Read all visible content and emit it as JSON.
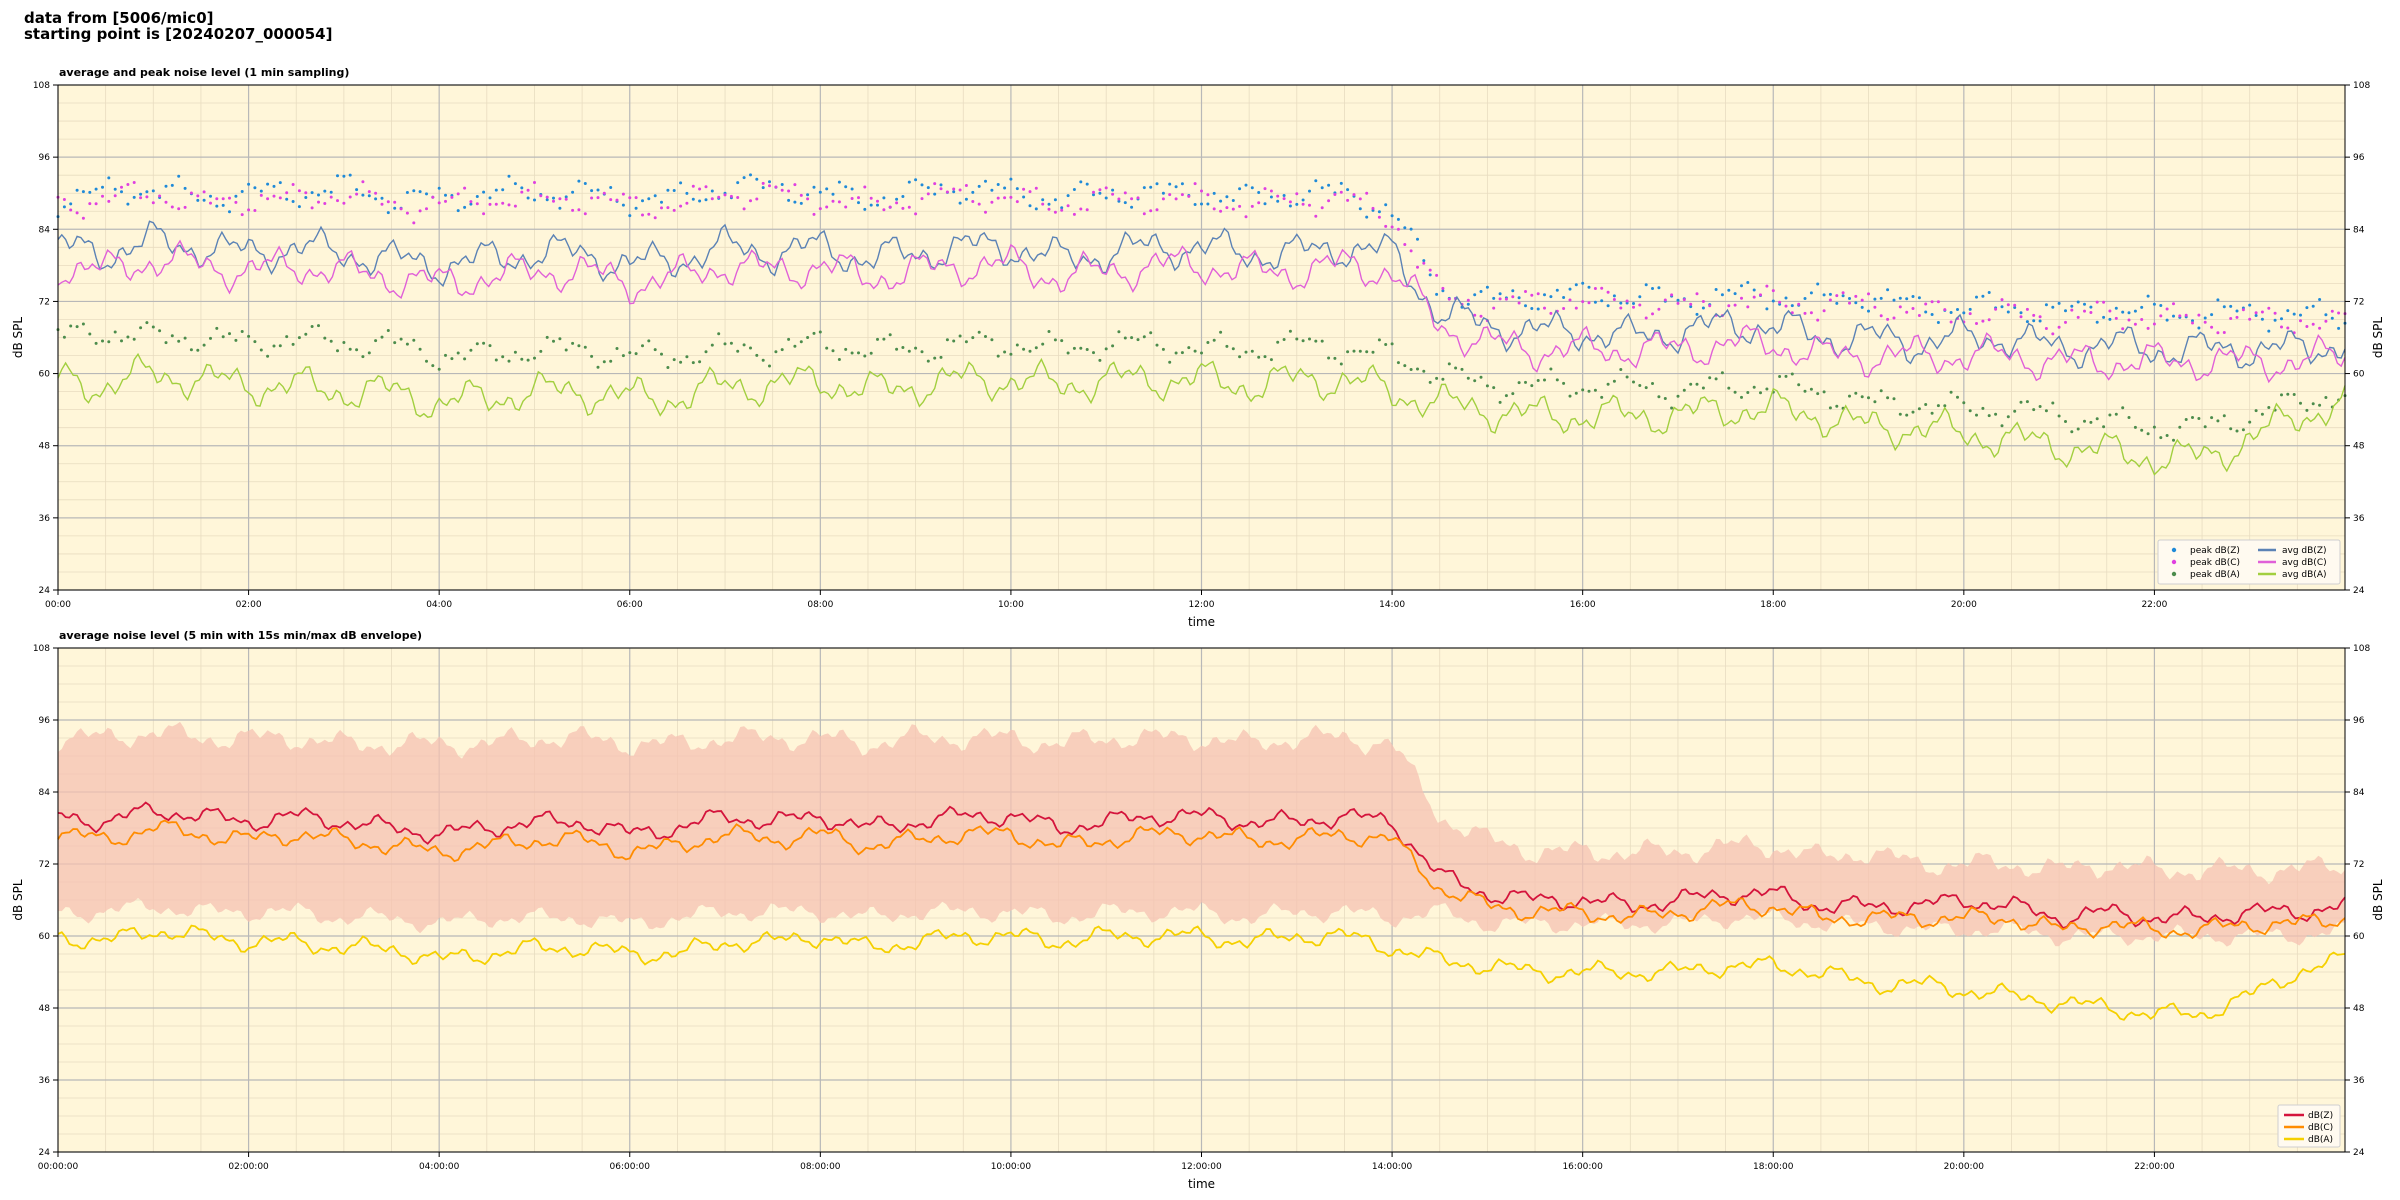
{
  "header": {
    "line1": "data from [5006/mic0]",
    "line2": "starting point is [20240207_000054]"
  },
  "colors": {
    "plot_bg": "#fff6d9",
    "peak_z": "#1f8ad8",
    "peak_c": "#e040e0",
    "peak_a": "#4c8c4c",
    "avg_z": "#5b82b5",
    "avg_c": "#e060d8",
    "avg_a": "#a2cf3f",
    "env_fill": "#f6c2b2",
    "dbz": "#d4143c",
    "dbc": "#ff8c00",
    "dba": "#f5d000"
  },
  "chart_data": [
    {
      "type": "line",
      "title": "average and peak noise level (1 min sampling)",
      "xlabel": "time",
      "ylabel": "dB SPL",
      "ylabel_right": "dB SPL",
      "ylim": [
        24,
        108
      ],
      "yticks": [
        "24",
        "36",
        "48",
        "60",
        "72",
        "84",
        "96",
        "108"
      ],
      "xlim_hours": [
        0,
        24
      ],
      "xticks": [
        "00:00",
        "02:00",
        "04:00",
        "06:00",
        "08:00",
        "10:00",
        "12:00",
        "14:00",
        "16:00",
        "18:00",
        "20:00",
        "22:00"
      ],
      "grid": true,
      "legend_position": "bottom-right",
      "x_hours": [
        0,
        0.5,
        1,
        1.5,
        2,
        2.5,
        3,
        3.5,
        4,
        4.5,
        5,
        5.5,
        6,
        6.5,
        7,
        7.5,
        8,
        8.5,
        9,
        9.5,
        10,
        10.5,
        11,
        11.5,
        12,
        12.5,
        13,
        13.5,
        14,
        14.5,
        15,
        15.5,
        16,
        16.5,
        17,
        17.5,
        18,
        18.5,
        19,
        19.5,
        20,
        20.5,
        21,
        21.5,
        22,
        22.5,
        23,
        23.5,
        24
      ],
      "series": [
        {
          "name": "peak dB(Z)",
          "style": "points",
          "color": "#1f8ad8",
          "values": [
            89,
            90,
            91,
            89,
            90,
            90,
            91,
            89,
            89,
            90,
            90,
            90,
            89,
            89,
            91,
            91,
            90,
            89,
            90,
            91,
            90,
            89,
            90,
            90,
            90,
            89,
            90,
            90,
            87,
            74,
            72,
            73,
            73,
            73,
            72,
            73,
            73,
            72,
            73,
            71,
            71,
            71,
            70,
            71,
            70,
            70,
            70,
            70,
            69
          ]
        },
        {
          "name": "peak dB(C)",
          "style": "points",
          "color": "#e040e0",
          "values": [
            88,
            89,
            90,
            88,
            89,
            89,
            90,
            88,
            88,
            89,
            89,
            89,
            88,
            88,
            90,
            90,
            89,
            88,
            89,
            90,
            89,
            88,
            89,
            89,
            89,
            88,
            89,
            89,
            86,
            73,
            71,
            72,
            72,
            72,
            71,
            72,
            72,
            71,
            72,
            70,
            70,
            70,
            69,
            70,
            69,
            69,
            69,
            69,
            68
          ]
        },
        {
          "name": "peak dB(A)",
          "style": "points",
          "color": "#4c8c4c",
          "values": [
            66,
            67,
            66,
            66,
            65,
            66,
            65,
            65,
            63,
            63,
            64,
            64,
            63,
            63,
            64,
            64,
            65,
            64,
            64,
            65,
            65,
            64,
            65,
            65,
            64,
            64,
            65,
            64,
            63,
            60,
            58,
            58,
            58,
            58,
            57,
            58,
            58,
            57,
            55,
            55,
            54,
            54,
            53,
            52,
            51,
            51,
            53,
            55,
            57
          ]
        },
        {
          "name": "avg dB(Z)",
          "style": "line",
          "color": "#5b82b5",
          "values": [
            81,
            80,
            82,
            81,
            80,
            81,
            80,
            79,
            78,
            79,
            80,
            80,
            78,
            79,
            81,
            80,
            81,
            79,
            80,
            81,
            81,
            79,
            80,
            81,
            81,
            80,
            80,
            81,
            80,
            70,
            68,
            67,
            67,
            66,
            67,
            68,
            68,
            66,
            66,
            65,
            66,
            66,
            64,
            65,
            64,
            64,
            64,
            64,
            65
          ]
        },
        {
          "name": "avg dB(C)",
          "style": "line",
          "color": "#e060d8",
          "values": [
            78,
            77,
            79,
            78,
            77,
            78,
            77,
            76,
            75,
            76,
            77,
            77,
            75,
            76,
            78,
            77,
            78,
            76,
            77,
            78,
            78,
            76,
            77,
            78,
            78,
            77,
            77,
            78,
            77,
            68,
            65,
            64,
            64,
            64,
            64,
            65,
            65,
            63,
            63,
            63,
            63,
            63,
            62,
            62,
            62,
            62,
            62,
            62,
            63
          ]
        },
        {
          "name": "avg dB(A)",
          "style": "line",
          "color": "#a2cf3f",
          "values": [
            59,
            58,
            60,
            59,
            58,
            58,
            57,
            57,
            55,
            56,
            57,
            57,
            56,
            56,
            58,
            58,
            59,
            57,
            58,
            59,
            59,
            58,
            59,
            59,
            59,
            58,
            59,
            59,
            57,
            55,
            54,
            53,
            53,
            53,
            53,
            54,
            54,
            53,
            51,
            51,
            50,
            49,
            48,
            47,
            46,
            46,
            49,
            53,
            55
          ]
        }
      ]
    },
    {
      "type": "line",
      "title": "average noise level (5 min with 15s min/max dB envelope)",
      "xlabel": "time",
      "ylabel": "dB SPL",
      "ylabel_right": "dB SPL",
      "ylim": [
        24,
        108
      ],
      "yticks": [
        "24",
        "36",
        "48",
        "60",
        "72",
        "84",
        "96",
        "108"
      ],
      "xlim_hours": [
        0,
        24
      ],
      "xticks": [
        "00:00:00",
        "02:00:00",
        "04:00:00",
        "06:00:00",
        "08:00:00",
        "10:00:00",
        "12:00:00",
        "14:00:00",
        "16:00:00",
        "18:00:00",
        "20:00:00",
        "22:00:00"
      ],
      "grid": true,
      "legend_position": "bottom-right",
      "x_hours": [
        0,
        0.5,
        1,
        1.5,
        2,
        2.5,
        3,
        3.5,
        4,
        4.5,
        5,
        5.5,
        6,
        6.5,
        7,
        7.5,
        8,
        8.5,
        9,
        9.5,
        10,
        10.5,
        11,
        11.5,
        12,
        12.5,
        13,
        13.5,
        14,
        14.5,
        15,
        15.5,
        16,
        16.5,
        17,
        17.5,
        18,
        18.5,
        19,
        19.5,
        20,
        20.5,
        21,
        21.5,
        22,
        22.5,
        23,
        23.5,
        24
      ],
      "envelope": {
        "min": [
          64,
          64,
          65,
          64,
          64,
          64,
          63,
          63,
          62,
          63,
          63,
          63,
          62,
          63,
          64,
          64,
          64,
          63,
          64,
          64,
          64,
          63,
          64,
          64,
          64,
          63,
          64,
          64,
          63,
          64,
          62,
          62,
          62,
          62,
          62,
          63,
          63,
          62,
          62,
          61,
          61,
          61,
          60,
          60,
          60,
          60,
          60,
          60,
          61
        ],
        "max": [
          93,
          93,
          94,
          93,
          93,
          93,
          92,
          92,
          92,
          92,
          93,
          93,
          92,
          92,
          93,
          93,
          93,
          92,
          93,
          93,
          93,
          92,
          93,
          93,
          93,
          92,
          93,
          93,
          92,
          80,
          76,
          74,
          74,
          74,
          74,
          75,
          75,
          73,
          74,
          72,
          72,
          72,
          71,
          72,
          71,
          71,
          71,
          71,
          72
        ]
      },
      "series": [
        {
          "name": "dB(Z)",
          "style": "line",
          "color": "#d4143c",
          "values": [
            80,
            79,
            81,
            80,
            79,
            80,
            79,
            78,
            77,
            78,
            79,
            79,
            77,
            78,
            80,
            79,
            80,
            78,
            79,
            80,
            80,
            78,
            79,
            80,
            80,
            79,
            79,
            80,
            79,
            70,
            67,
            66,
            66,
            65,
            66,
            67,
            67,
            65,
            65,
            65,
            66,
            65,
            63,
            64,
            63,
            63,
            64,
            64,
            65
          ]
        },
        {
          "name": "dB(C)",
          "style": "line",
          "color": "#ff8c00",
          "values": [
            77,
            76,
            78,
            77,
            76,
            77,
            76,
            75,
            74,
            75,
            76,
            76,
            74,
            75,
            77,
            76,
            77,
            75,
            76,
            77,
            77,
            75,
            76,
            77,
            77,
            76,
            76,
            77,
            76,
            68,
            65,
            64,
            64,
            63,
            64,
            65,
            65,
            63,
            63,
            63,
            63,
            63,
            61,
            62,
            61,
            61,
            62,
            62,
            63
          ]
        },
        {
          "name": "dB(A)",
          "style": "line",
          "color": "#f5d000",
          "values": [
            60,
            59,
            61,
            60,
            59,
            59,
            58,
            58,
            56,
            57,
            58,
            58,
            57,
            57,
            59,
            59,
            60,
            58,
            59,
            60,
            60,
            59,
            60,
            60,
            60,
            59,
            60,
            60,
            58,
            56,
            55,
            54,
            54,
            54,
            54,
            55,
            55,
            54,
            52,
            52,
            51,
            50,
            49,
            48,
            47,
            47,
            50,
            54,
            56
          ]
        }
      ]
    }
  ]
}
